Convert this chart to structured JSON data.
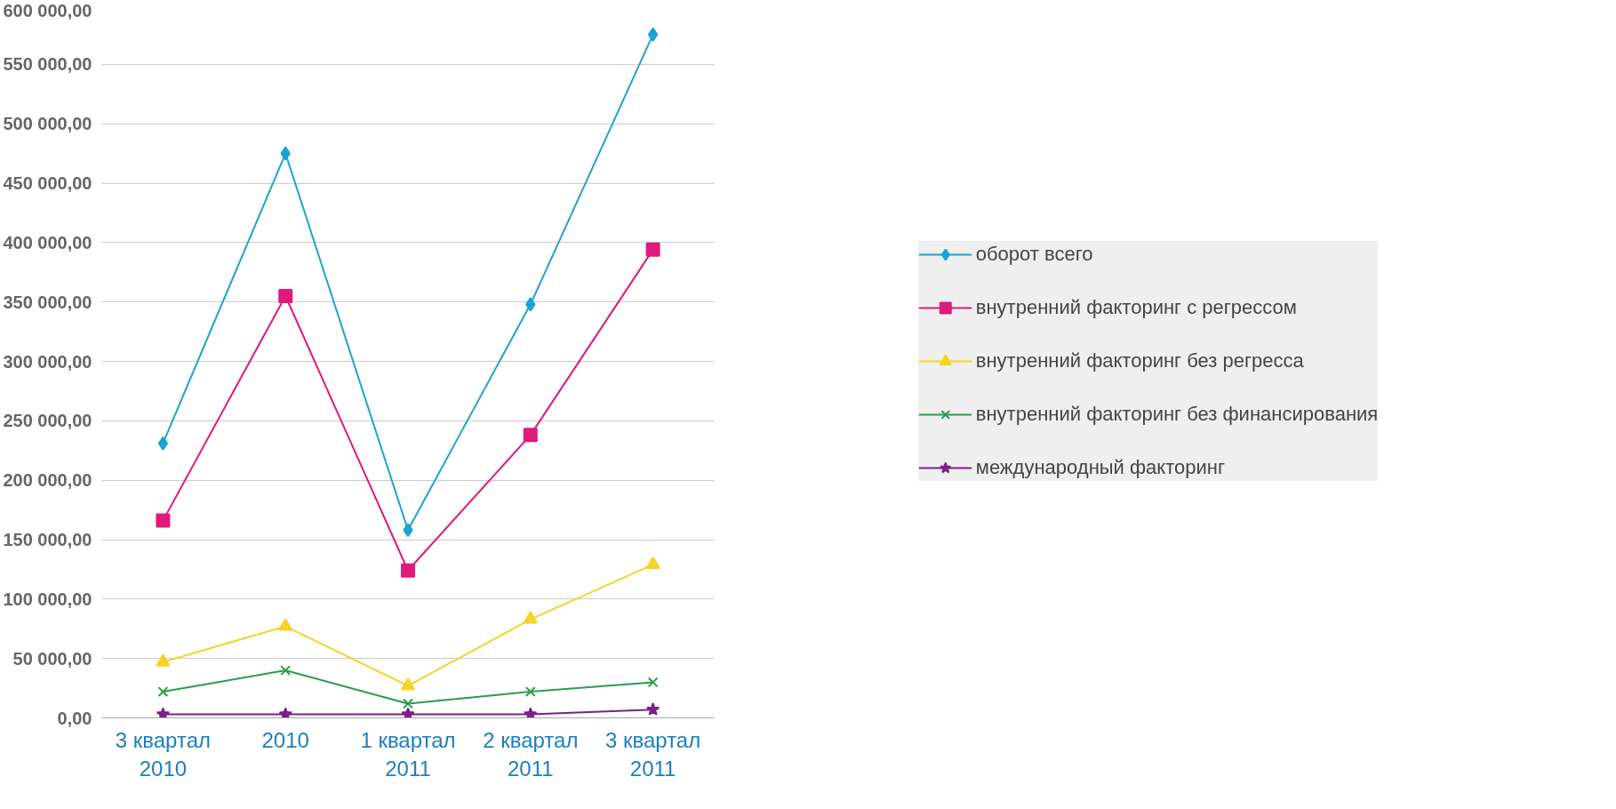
{
  "chart_data": {
    "type": "line",
    "categories": [
      "3 квартал 2010",
      "2010",
      "1 квартал 2011",
      "2 квартал 2011",
      "3 квартал 2011"
    ],
    "series": [
      {
        "name": "оборот всего",
        "color": "#1ba3d4",
        "marker": "diamond",
        "values": [
          231000,
          475000,
          158000,
          348000,
          575000
        ]
      },
      {
        "name": "внутренний факторинг с регрессом",
        "color": "#e0197d",
        "marker": "square",
        "values": [
          166000,
          355000,
          124000,
          238000,
          394000
        ]
      },
      {
        "name": "внутренний факторинг без регресса",
        "color": "#f5d327",
        "marker": "triangle",
        "values": [
          47000,
          77000,
          27000,
          83000,
          129000
        ]
      },
      {
        "name": "внутренний факторинг без финансирования",
        "color": "#2a9d4a",
        "marker": "cross",
        "values": [
          22000,
          40000,
          12000,
          22000,
          30000
        ]
      },
      {
        "name": "международный факторинг",
        "color": "#7b1f8a",
        "marker": "star",
        "values": [
          3000,
          3000,
          3000,
          3000,
          7000
        ]
      }
    ],
    "ylim": [
      0,
      600000
    ],
    "yticks": [
      {
        "value": 0,
        "label": "0,00"
      },
      {
        "value": 50000,
        "label": "50 000,00"
      },
      {
        "value": 100000,
        "label": "100 000,00"
      },
      {
        "value": 150000,
        "label": "150 000,00"
      },
      {
        "value": 200000,
        "label": "200 000,00"
      },
      {
        "value": 250000,
        "label": "250 000,00"
      },
      {
        "value": 300000,
        "label": "300 000,00"
      },
      {
        "value": 350000,
        "label": "350 000,00"
      },
      {
        "value": 400000,
        "label": "400 000,00"
      },
      {
        "value": 450000,
        "label": "450 000,00"
      },
      {
        "value": 500000,
        "label": "500 000,00"
      },
      {
        "value": 550000,
        "label": "550 000,00"
      },
      {
        "value": 600000,
        "label": "600 000,00"
      }
    ],
    "grid": "y",
    "legend": "right",
    "line_style": "solid"
  }
}
